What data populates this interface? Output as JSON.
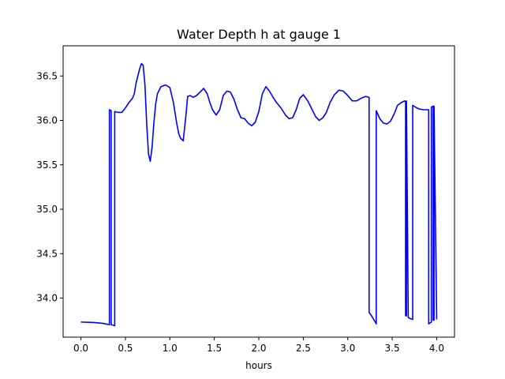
{
  "chart_data": {
    "type": "line",
    "title": "Water Depth h at gauge 1",
    "xlabel": "hours",
    "ylabel": "",
    "xlim": [
      -0.2,
      4.2
    ],
    "ylim": [
      33.56,
      36.84
    ],
    "xticks": [
      0.0,
      0.5,
      1.0,
      1.5,
      2.0,
      2.5,
      3.0,
      3.5,
      4.0
    ],
    "xtick_labels": [
      "0.0",
      "0.5",
      "1.0",
      "1.5",
      "2.0",
      "2.5",
      "3.0",
      "3.5",
      "4.0"
    ],
    "yticks": [
      34.0,
      34.5,
      35.0,
      35.5,
      36.0,
      36.5
    ],
    "ytick_labels": [
      "34.0",
      "34.5",
      "35.0",
      "35.5",
      "36.0",
      "36.5"
    ],
    "grid": false,
    "series": [
      {
        "color": "#0000ff",
        "x": [
          0.0,
          0.15,
          0.25,
          0.32,
          0.32,
          0.34,
          0.34,
          0.38,
          0.38,
          0.42,
          0.46,
          0.5,
          0.54,
          0.58,
          0.6,
          0.62,
          0.64,
          0.66,
          0.68,
          0.7,
          0.72,
          0.74,
          0.76,
          0.78,
          0.8,
          0.82,
          0.84,
          0.86,
          0.9,
          0.95,
          1.0,
          1.04,
          1.08,
          1.1,
          1.12,
          1.15,
          1.18,
          1.2,
          1.23,
          1.26,
          1.3,
          1.35,
          1.38,
          1.42,
          1.45,
          1.48,
          1.52,
          1.56,
          1.6,
          1.64,
          1.68,
          1.72,
          1.76,
          1.8,
          1.84,
          1.88,
          1.92,
          1.96,
          2.0,
          2.04,
          2.08,
          2.12,
          2.16,
          2.2,
          2.25,
          2.3,
          2.34,
          2.38,
          2.42,
          2.46,
          2.5,
          2.55,
          2.6,
          2.64,
          2.68,
          2.72,
          2.76,
          2.8,
          2.85,
          2.9,
          2.95,
          3.0,
          3.05,
          3.1,
          3.15,
          3.2,
          3.24,
          3.24,
          3.28,
          3.32,
          3.32,
          3.36,
          3.4,
          3.44,
          3.48,
          3.52,
          3.56,
          3.6,
          3.64,
          3.65,
          3.65,
          3.66,
          3.66,
          3.68,
          3.7,
          3.73,
          3.73,
          3.76,
          3.8,
          3.85,
          3.9,
          3.91,
          3.91,
          3.94,
          3.94,
          3.96,
          3.96,
          3.97,
          3.97,
          4.0
        ],
        "values": [
          33.73,
          33.725,
          33.715,
          33.7,
          36.12,
          36.11,
          33.7,
          33.69,
          36.1,
          36.09,
          36.09,
          36.14,
          36.2,
          36.25,
          36.3,
          36.42,
          36.5,
          36.58,
          36.64,
          36.62,
          36.4,
          35.95,
          35.62,
          35.54,
          35.7,
          35.97,
          36.18,
          36.3,
          36.38,
          36.4,
          36.37,
          36.2,
          35.95,
          35.85,
          35.8,
          35.77,
          36.05,
          36.27,
          36.28,
          36.26,
          36.28,
          36.33,
          36.36,
          36.3,
          36.2,
          36.12,
          36.06,
          36.12,
          36.28,
          36.33,
          36.32,
          36.24,
          36.12,
          36.03,
          36.02,
          35.97,
          35.94,
          35.98,
          36.1,
          36.3,
          36.38,
          36.33,
          36.26,
          36.2,
          36.14,
          36.06,
          36.02,
          36.03,
          36.12,
          36.25,
          36.29,
          36.22,
          36.12,
          36.04,
          36.0,
          36.03,
          36.09,
          36.2,
          36.29,
          36.34,
          36.33,
          36.28,
          36.22,
          36.22,
          36.25,
          36.27,
          36.26,
          33.84,
          33.78,
          33.71,
          36.11,
          36.02,
          35.97,
          35.96,
          35.99,
          36.07,
          36.17,
          36.2,
          36.22,
          36.21,
          33.8,
          33.8,
          36.22,
          33.78,
          33.77,
          33.76,
          36.17,
          36.15,
          36.13,
          36.12,
          36.12,
          36.12,
          33.71,
          33.73,
          36.15,
          36.16,
          33.75,
          33.75,
          36.16,
          33.76
        ]
      }
    ]
  }
}
